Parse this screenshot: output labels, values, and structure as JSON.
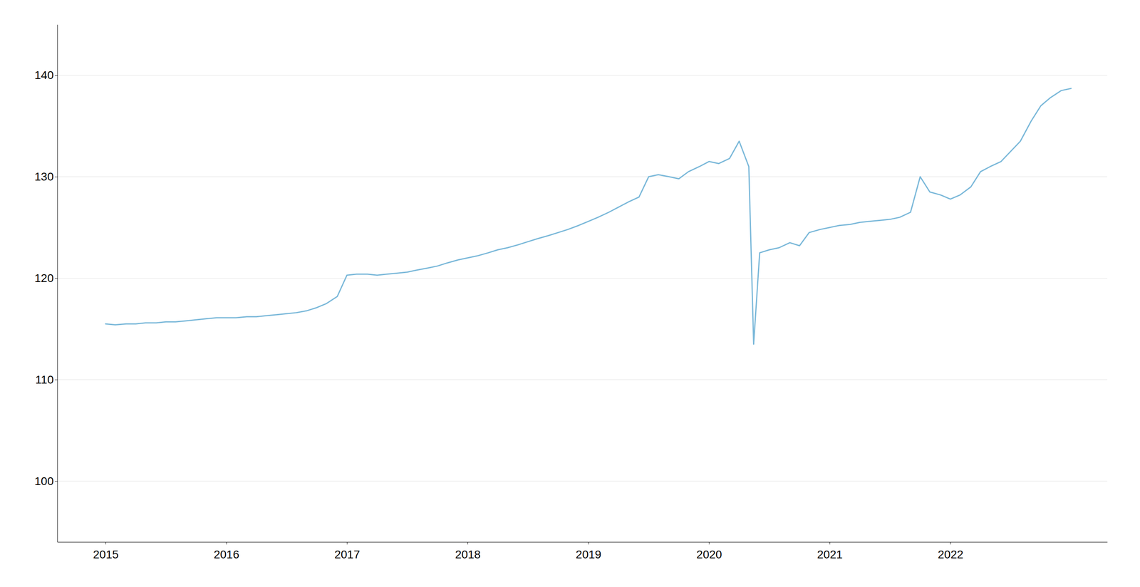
{
  "chart_data": {
    "type": "line",
    "color": "#7ab8d9",
    "grid": true,
    "xlim": [
      2014.6,
      2023.3
    ],
    "xticks": [
      2015,
      2016,
      2017,
      2018,
      2019,
      2020,
      2021,
      2022
    ],
    "ylim": [
      94,
      145
    ],
    "yticks": [
      100,
      110,
      120,
      130,
      140
    ],
    "x": [
      2015.0,
      2015.08,
      2015.17,
      2015.25,
      2015.33,
      2015.42,
      2015.5,
      2015.58,
      2015.67,
      2015.75,
      2015.83,
      2015.92,
      2016.0,
      2016.08,
      2016.17,
      2016.25,
      2016.33,
      2016.42,
      2016.5,
      2016.58,
      2016.67,
      2016.75,
      2016.83,
      2016.92,
      2017.0,
      2017.08,
      2017.17,
      2017.25,
      2017.33,
      2017.42,
      2017.5,
      2017.58,
      2017.67,
      2017.75,
      2017.83,
      2017.92,
      2018.0,
      2018.08,
      2018.17,
      2018.25,
      2018.33,
      2018.42,
      2018.5,
      2018.58,
      2018.67,
      2018.75,
      2018.83,
      2018.92,
      2019.0,
      2019.08,
      2019.17,
      2019.25,
      2019.33,
      2019.42,
      2019.5,
      2019.58,
      2019.67,
      2019.75,
      2019.83,
      2019.92,
      2020.0,
      2020.08,
      2020.17,
      2020.25,
      2020.33,
      2020.37,
      2020.42,
      2020.5,
      2020.58,
      2020.67,
      2020.75,
      2020.83,
      2020.92,
      2021.0,
      2021.08,
      2021.17,
      2021.25,
      2021.33,
      2021.42,
      2021.5,
      2021.58,
      2021.67,
      2021.75,
      2021.83,
      2021.92,
      2022.0,
      2022.08,
      2022.17,
      2022.25,
      2022.33,
      2022.42,
      2022.5,
      2022.58,
      2022.67,
      2022.75,
      2022.83,
      2022.92,
      2023.0
    ],
    "values": [
      115.5,
      115.4,
      115.5,
      115.5,
      115.6,
      115.6,
      115.7,
      115.7,
      115.8,
      115.9,
      116.0,
      116.1,
      116.1,
      116.1,
      116.2,
      116.2,
      116.3,
      116.4,
      116.5,
      116.6,
      116.8,
      117.1,
      117.5,
      118.2,
      120.3,
      120.4,
      120.4,
      120.3,
      120.4,
      120.5,
      120.6,
      120.8,
      121.0,
      121.2,
      121.5,
      121.8,
      122.0,
      122.2,
      122.5,
      122.8,
      123.0,
      123.3,
      123.6,
      123.9,
      124.2,
      124.5,
      124.8,
      125.2,
      125.6,
      126.0,
      126.5,
      127.0,
      127.5,
      128.0,
      130.0,
      130.2,
      130.0,
      129.8,
      130.5,
      131.0,
      131.5,
      131.3,
      131.8,
      133.5,
      131.0,
      113.5,
      122.5,
      122.8,
      123.0,
      123.5,
      123.2,
      124.5,
      124.8,
      125.0,
      125.2,
      125.3,
      125.5,
      125.6,
      125.7,
      125.8,
      126.0,
      126.5,
      130.0,
      128.5,
      128.2,
      127.8,
      128.2,
      129.0,
      130.5,
      131.0,
      131.5,
      132.5,
      133.5,
      135.5,
      137.0,
      137.8,
      138.5,
      138.7
    ]
  }
}
